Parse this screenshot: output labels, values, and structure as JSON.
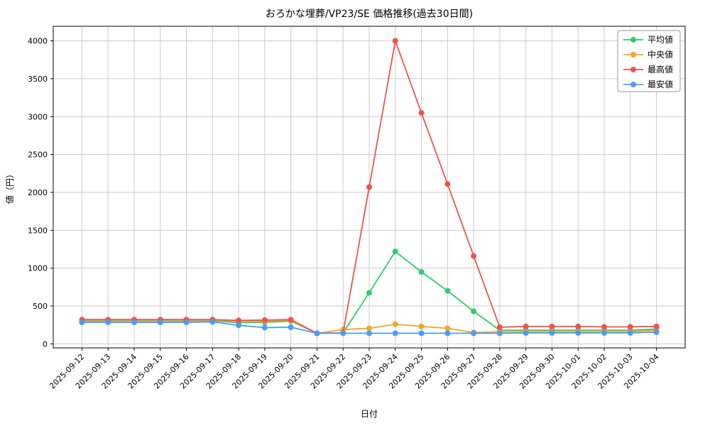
{
  "chart_data": {
    "type": "line",
    "title": "おろかな埋葬/VP23/SE 価格推移(過去30日間)",
    "xlabel": "日付",
    "ylabel": "値（円）",
    "grid": true,
    "legend_position": "upper right",
    "ylim": [
      0,
      4000
    ],
    "yticks": [
      0,
      500,
      1000,
      1500,
      2000,
      2500,
      3000,
      3500,
      4000
    ],
    "x": [
      "2025-09-12",
      "2025-09-13",
      "2025-09-14",
      "2025-09-15",
      "2025-09-16",
      "2025-09-17",
      "2025-09-18",
      "2025-09-19",
      "2025-09-20",
      "2025-09-21",
      "2025-09-22",
      "2025-09-23",
      "2025-09-24",
      "2025-09-25",
      "2025-09-26",
      "2025-09-27",
      "2025-09-28",
      "2025-09-29",
      "2025-09-30",
      "2025-10-01",
      "2025-10-02",
      "2025-10-03",
      "2025-10-04"
    ],
    "series": [
      {
        "name": "平均値",
        "color": "#2ecc71",
        "values": [
          305,
          305,
          305,
          305,
          305,
          305,
          280,
          285,
          300,
          140,
          145,
          675,
          1220,
          950,
          700,
          430,
          180,
          180,
          180,
          180,
          180,
          180,
          195
        ]
      },
      {
        "name": "中央値",
        "color": "#f5a623",
        "values": [
          310,
          310,
          310,
          310,
          310,
          310,
          300,
          300,
          310,
          140,
          190,
          205,
          260,
          230,
          205,
          150,
          160,
          160,
          160,
          160,
          160,
          160,
          180
        ]
      },
      {
        "name": "最高値",
        "color": "#ef5350",
        "values": [
          320,
          320,
          320,
          320,
          320,
          320,
          310,
          315,
          320,
          140,
          145,
          2070,
          4000,
          3050,
          2110,
          1160,
          220,
          230,
          230,
          230,
          225,
          225,
          230
        ]
      },
      {
        "name": "最安値",
        "color": "#4a9df5",
        "values": [
          285,
          285,
          285,
          285,
          285,
          290,
          245,
          215,
          220,
          140,
          140,
          140,
          140,
          140,
          140,
          140,
          140,
          145,
          145,
          145,
          145,
          145,
          155
        ]
      }
    ]
  }
}
